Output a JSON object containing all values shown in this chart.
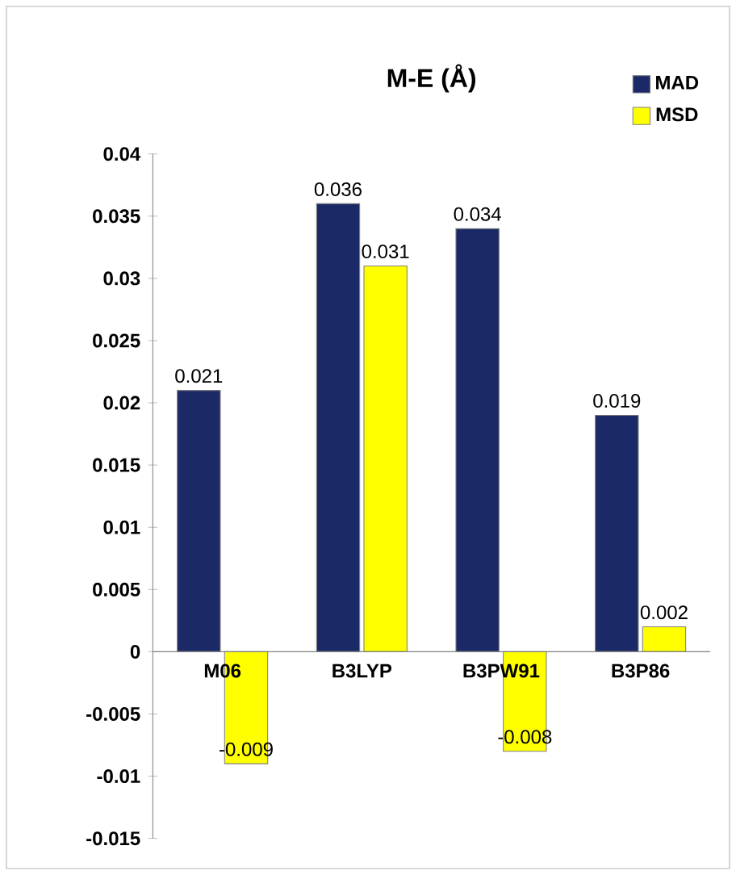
{
  "chart_data": {
    "type": "bar",
    "title": "M-E (Å)",
    "categories": [
      "M06",
      "B3LYP",
      "B3PW91",
      "B3P86"
    ],
    "series": [
      {
        "name": "MAD",
        "color": "#1b2a66",
        "values": [
          0.021,
          0.036,
          0.034,
          0.019
        ]
      },
      {
        "name": "MSD",
        "color": "#ffff00",
        "values": [
          -0.009,
          0.031,
          -0.008,
          0.002
        ]
      }
    ],
    "ylim": [
      -0.015,
      0.04
    ],
    "yticks": [
      0.04,
      0.035,
      0.03,
      0.025,
      0.02,
      0.015,
      0.01,
      0.005,
      0,
      -0.005,
      -0.01,
      -0.015
    ],
    "data_labels": true,
    "legend": "top right",
    "grid": false
  }
}
